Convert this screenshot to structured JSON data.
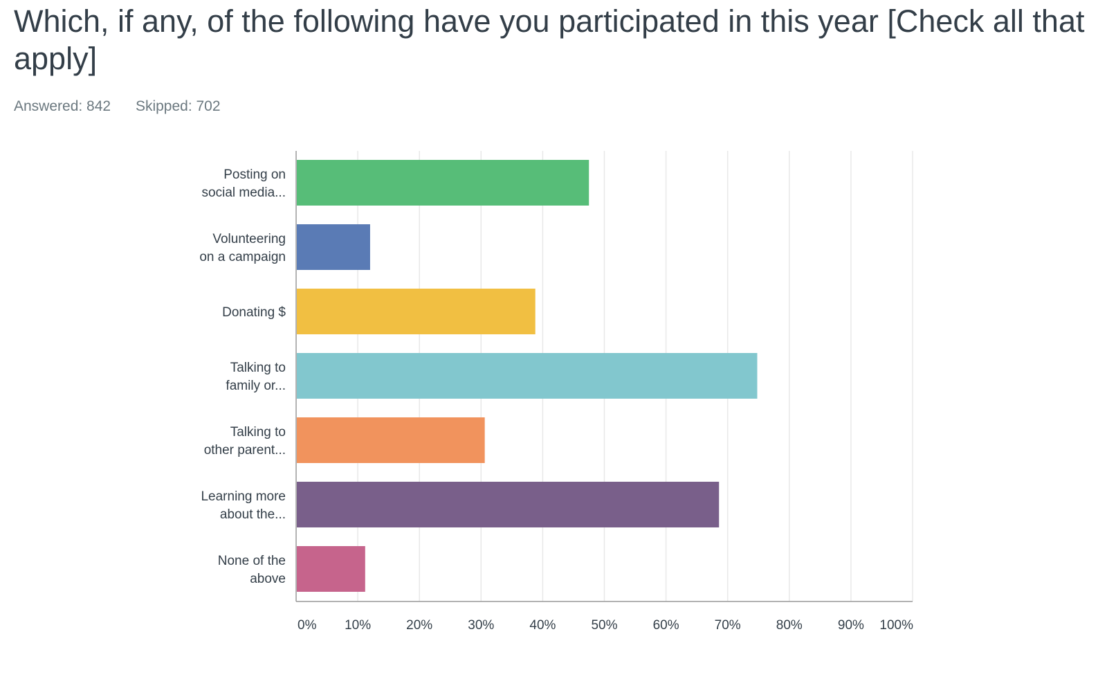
{
  "question": {
    "title": "Which, if any, of the following have you participated in this year [Check all that apply]"
  },
  "stats": {
    "answered": "Answered: 842",
    "skipped": "Skipped: 702"
  },
  "chart_data": {
    "type": "bar",
    "orientation": "horizontal",
    "title": "Which, if any, of the following have you participated in this year [Check all that apply]",
    "categories": [
      [
        "Posting on",
        "social media..."
      ],
      [
        "Volunteering",
        "on a campaign"
      ],
      [
        "Donating $"
      ],
      [
        "Talking to",
        "family or..."
      ],
      [
        "Talking to",
        "other parent..."
      ],
      [
        "Learning more",
        "about the..."
      ],
      [
        "None of the",
        "above"
      ]
    ],
    "values": [
      47.5,
      12,
      38.8,
      74.8,
      30.6,
      68.6,
      11.2
    ],
    "colors": [
      "#57bd78",
      "#5a7bb5",
      "#f1bf42",
      "#82c7ce",
      "#f1935d",
      "#795f8a",
      "#c6648c"
    ],
    "xlim": [
      0,
      100
    ],
    "x_ticks": [
      "0%",
      "10%",
      "20%",
      "30%",
      "40%",
      "50%",
      "60%",
      "70%",
      "80%",
      "90%",
      "100%"
    ],
    "grid": true,
    "xlabel": "",
    "ylabel": ""
  }
}
